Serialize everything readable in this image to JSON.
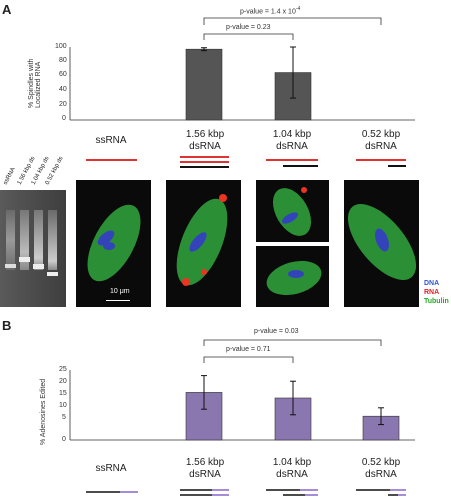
{
  "panelA": {
    "letter": "A",
    "ylabel": [
      "% Spindles with",
      "Localized RNA"
    ],
    "yticks": [
      "100",
      "80",
      "60",
      "40",
      "20",
      "0"
    ],
    "pvalue_top": "p-value = 1.4 x 10",
    "pvalue_top_exp": "-4",
    "pvalue_inner": "p-value = 0.23",
    "categories": [
      {
        "line1": "ssRNA",
        "line2": ""
      },
      {
        "line1": "1.56 kbp",
        "line2": "dsRNA"
      },
      {
        "line1": "1.04 kbp",
        "line2": "dsRNA"
      },
      {
        "line1": "0.52 kbp",
        "line2": "dsRNA"
      }
    ],
    "gel_labels": [
      "ssRNA",
      "1.56 kbp ds",
      "1.04 kbp ds",
      "0.52 kbp ds"
    ],
    "scale_bar": "10 μm",
    "legend": [
      {
        "label": "DNA",
        "color": "#3355cc"
      },
      {
        "label": "RNA",
        "color": "#dd2222"
      },
      {
        "label": "Tubulin",
        "color": "#22aa22"
      }
    ]
  },
  "panelB": {
    "letter": "B",
    "ylabel": "% Adenosines Edited",
    "yticks": [
      "25",
      "20",
      "15",
      "10",
      "5",
      "0"
    ],
    "pvalue_top": "p-value = 0.03",
    "pvalue_inner": "p-value = 0.71",
    "categories": [
      {
        "line1": "ssRNA",
        "line2": ""
      },
      {
        "line1": "1.56 kbp",
        "line2": "dsRNA"
      },
      {
        "line1": "1.04 kbp",
        "line2": "dsRNA"
      },
      {
        "line1": "0.52 kbp",
        "line2": "dsRNA"
      }
    ]
  },
  "colors": {
    "barA": "#555555",
    "barB": "#8b77b0",
    "rna_strand": "#dd3333",
    "dna_strand": "#111111",
    "purple_strand": "#8866cc"
  },
  "chart_data": [
    {
      "type": "bar",
      "categories": [
        "ssRNA",
        "1.56 kbp dsRNA",
        "1.04 kbp dsRNA",
        "0.52 kbp dsRNA"
      ],
      "values": [
        0,
        97,
        65,
        0
      ],
      "errors": [
        0,
        2,
        35,
        0
      ],
      "ylabel": "% Spindles with Localized RNA",
      "ylim": [
        0,
        100
      ]
    },
    {
      "type": "bar",
      "categories": [
        "ssRNA",
        "1.56 kbp dsRNA",
        "1.04 kbp dsRNA",
        "0.52 kbp dsRNA"
      ],
      "values": [
        0,
        17,
        15,
        8.5
      ],
      "errors": [
        0,
        6,
        6,
        3
      ],
      "ylabel": "% Adenosines Edited",
      "ylim": [
        0,
        25
      ]
    }
  ]
}
